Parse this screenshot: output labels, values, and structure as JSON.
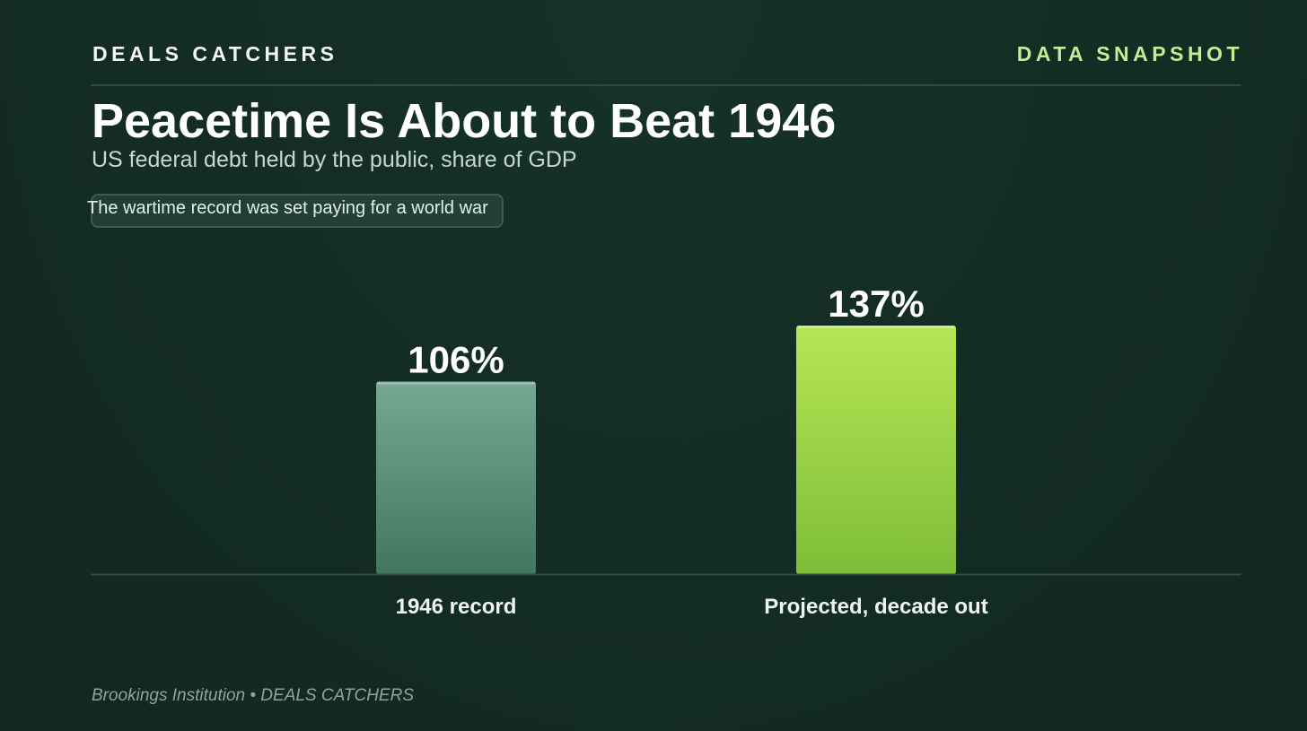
{
  "header": {
    "brand": "DEALS CATCHERS",
    "tag": "DATA SNAPSHOT"
  },
  "title": "Peacetime Is About to Beat 1946",
  "subtitle": "US federal debt held by the public, share of GDP",
  "note": "The wartime record was set paying for a world war",
  "source": "Brookings Institution • DEALS CATCHERS",
  "colors": {
    "background": "#132c24",
    "accent": "#c4ec92",
    "bar_1946_top": "#77a891",
    "bar_1946_bottom": "#427560",
    "bar_projected_top": "#b6e655",
    "bar_projected_bottom": "#7ebd38"
  },
  "chart_data": {
    "type": "bar",
    "categories": [
      "1946 record",
      "Projected, decade out"
    ],
    "values": [
      106,
      137
    ],
    "value_labels": [
      "106%",
      "137%"
    ],
    "unit": "%",
    "title": "Peacetime Is About to Beat 1946",
    "subtitle": "US federal debt held by the public, share of GDP",
    "xlabel": "",
    "ylabel": "",
    "ylim": [
      0,
      137
    ],
    "grid": false,
    "legend": "none"
  }
}
